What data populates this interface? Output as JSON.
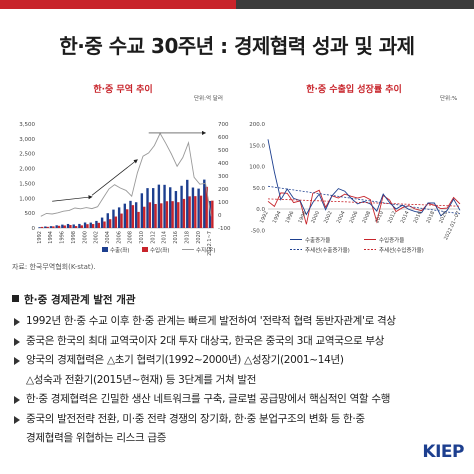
{
  "title": "한·중 수교 30주년 : 경제협력 성과 및 과제",
  "left_panel": {
    "title": "한·중 무역 추이",
    "unit": "단위:억 달러"
  },
  "right_panel": {
    "title": "한·중 수출입 성장률 추이",
    "unit": "단위:%"
  },
  "source": "자료: 한국무역협회(K-stat).",
  "section_head": "한·중 경제관계 발전 개관",
  "bullets": [
    {
      "line1": "1992년 한·중 수교 이후 한·중 관계는 빠르게 발전하여 '전략적 협력 동반자관계'로 격상",
      "line2": ""
    },
    {
      "line1": "중국은 한국의 최대 교역국이자 2대 투자 대상국, 한국은 중국의 3대 교역국으로 부상",
      "line2": ""
    },
    {
      "line1": "양국의 경제협력은 △초기 협력기(1992~2000년) △성장기(2001~14년)",
      "line2": "△성숙과 전환기(2015년~현재) 등 3단계를 거쳐 발전"
    },
    {
      "line1": "한·중 경제협력은 긴밀한 생산 네트워크를 구축, 글로벌 공급망에서 핵심적인 역할 수행",
      "line2": ""
    },
    {
      "line1": "중국의 발전전략 전환, 미·중 전략 경쟁의 장기화, 한·중 분업구조의 변화 등 한·중",
      "line2": "경제협력을 위협하는 리스크 급증"
    }
  ],
  "logo": {
    "main": "KIEP"
  },
  "colors": {
    "accent": "#c8242b",
    "dark": "#3b3b3b",
    "navy": "#1d3f8f",
    "grey": "#9a9a9a"
  },
  "chart_data": [
    {
      "type": "bar",
      "title": "한·중 무역 추이",
      "categories": [
        "1992",
        "1993",
        "1994",
        "1995",
        "1996",
        "1997",
        "1998",
        "1999",
        "2000",
        "2001",
        "2002",
        "2003",
        "2004",
        "2005",
        "2006",
        "2007",
        "2008",
        "2009",
        "2010",
        "2011",
        "2012",
        "2013",
        "2014",
        "2015",
        "2016",
        "2017",
        "2018",
        "2019",
        "2020",
        "2021",
        "2022.1~7"
      ],
      "x_tick_labels": [
        "1992",
        "1994",
        "1996",
        "1998",
        "2000",
        "2002",
        "2004",
        "2006",
        "2008",
        "2010",
        "2012",
        "2014",
        "2016",
        "2018",
        "2020",
        "2022.1~7"
      ],
      "ylim_left": [
        0,
        3500
      ],
      "ylim_right": [
        -100,
        700
      ],
      "y_ticks_left": [
        "3,500",
        "3,000",
        "2,500",
        "2,000",
        "1,500",
        "1,000",
        "500",
        "0"
      ],
      "y_ticks_right": [
        "700",
        "600",
        "500",
        "400",
        "300",
        "200",
        "100",
        "0",
        "-100"
      ],
      "series": [
        {
          "name": "수출(좌)",
          "color": "#1d3f8f",
          "axis": "left",
          "values": [
            27,
            51,
            62,
            91,
            114,
            136,
            119,
            137,
            185,
            182,
            238,
            351,
            497,
            619,
            694,
            819,
            914,
            867,
            1168,
            1342,
            1343,
            1459,
            1453,
            1371,
            1244,
            1421,
            1621,
            1362,
            1326,
            1629,
            910
          ]
        },
        {
          "name": "수입(좌)",
          "color": "#c8242b",
          "axis": "left",
          "values": [
            37,
            39,
            54,
            74,
            85,
            101,
            65,
            89,
            128,
            133,
            174,
            219,
            296,
            386,
            486,
            630,
            769,
            542,
            716,
            864,
            808,
            831,
            901,
            903,
            869,
            979,
            1065,
            1072,
            1089,
            1386,
            920
          ]
        },
        {
          "name": "수지(우)",
          "color": "#9a9a9a",
          "axis": "right",
          "line": true,
          "values": [
            -10,
            12,
            8,
            17,
            29,
            35,
            54,
            48,
            57,
            49,
            64,
            132,
            201,
            233,
            208,
            189,
            145,
            325,
            452,
            478,
            535,
            628,
            552,
            469,
            375,
            442,
            556,
            290,
            237,
            243,
            -10
          ]
        }
      ]
    },
    {
      "type": "line",
      "title": "한·중 수출입 성장률 추이",
      "x_tick_labels": [
        "1992",
        "1994",
        "1996",
        "1998",
        "2000",
        "2002",
        "2004",
        "2006",
        "2008",
        "2010",
        "2012",
        "2014",
        "2016",
        "2018",
        "2020",
        "2022.01~07"
      ],
      "ylim": [
        -40,
        200
      ],
      "y_ticks": [
        "200.0",
        "150.0",
        "100.0",
        "50.0",
        "0.0",
        "-50.0"
      ],
      "series": [
        {
          "name": "수출증가율",
          "color": "#1d3f8f",
          "style": "solid",
          "values": [
            164,
            87,
            22,
            47,
            25,
            20,
            -13,
            15,
            35,
            -2,
            31,
            48,
            42,
            25,
            12,
            18,
            12,
            -5,
            35,
            15,
            0,
            9,
            -1,
            -6,
            -9,
            14,
            14,
            -16,
            -3,
            23,
            -3
          ]
        },
        {
          "name": "수입증가율",
          "color": "#c8242b",
          "style": "solid",
          "values": [
            18,
            6,
            38,
            37,
            15,
            19,
            -36,
            37,
            44,
            4,
            31,
            26,
            35,
            30,
            26,
            30,
            22,
            -30,
            32,
            21,
            -6,
            3,
            8,
            0,
            -4,
            13,
            9,
            1,
            2,
            27,
            12
          ]
        },
        {
          "name": "추세선(수출증가율)",
          "color": "#1d3f8f",
          "style": "dashed"
        },
        {
          "name": "추세선(수입증가율)",
          "color": "#c8242b",
          "style": "dashed"
        }
      ]
    }
  ]
}
